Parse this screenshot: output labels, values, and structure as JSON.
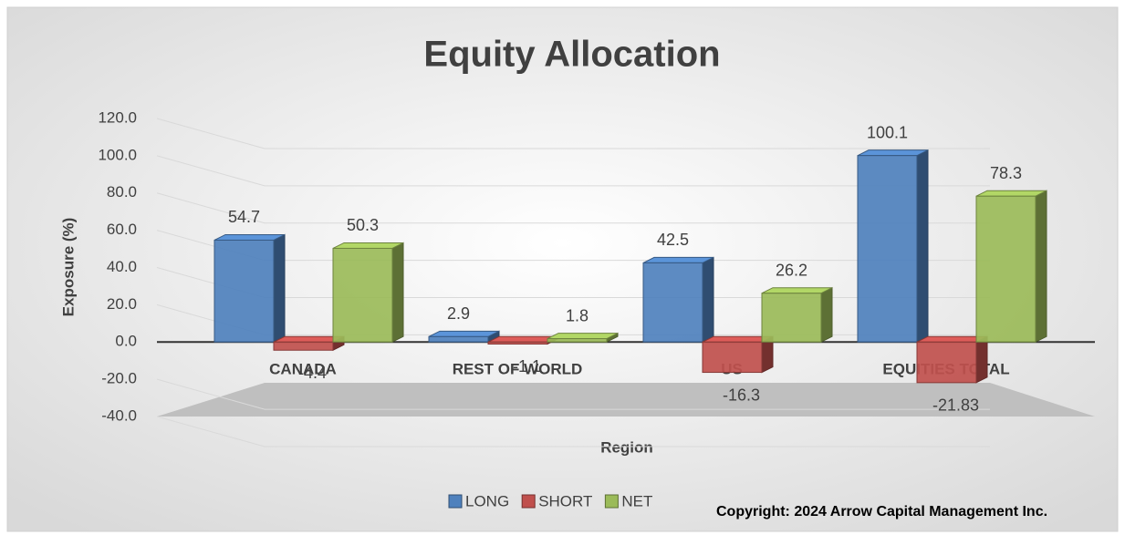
{
  "chart_data": {
    "type": "bar3d",
    "title": "Equity Allocation",
    "y_label": "Exposure (%)",
    "x_label": "Region",
    "annotation": "Copyright: 2024 Arrow Capital Management Inc.",
    "categories": [
      "CANADA",
      "REST OF WORLD",
      "US",
      "EQUITIES TOTAL"
    ],
    "series": [
      {
        "name": "LONG",
        "color": "#4f81bd",
        "values": [
          54.7,
          2.9,
          42.5,
          100.1
        ]
      },
      {
        "name": "SHORT",
        "color": "#c0504d",
        "values": [
          -4.4,
          -1.1,
          -16.3,
          -21.83
        ]
      },
      {
        "name": "NET",
        "color": "#9bbb59",
        "values": [
          50.3,
          1.8,
          26.2,
          78.3
        ]
      }
    ],
    "ylim": [
      -40,
      120
    ],
    "yticks": [
      {
        "value": -40,
        "label": "-40.0"
      },
      {
        "value": -20,
        "label": "-20.0"
      },
      {
        "value": 0,
        "label": "0.0"
      },
      {
        "value": 20,
        "label": "20.0"
      },
      {
        "value": 40,
        "label": "40.0"
      },
      {
        "value": 60,
        "label": "60.0"
      },
      {
        "value": 80,
        "label": "80.0"
      },
      {
        "value": 100,
        "label": "100.0"
      },
      {
        "value": 120,
        "label": "120.0"
      }
    ],
    "grid": true,
    "legend": "bottom"
  }
}
